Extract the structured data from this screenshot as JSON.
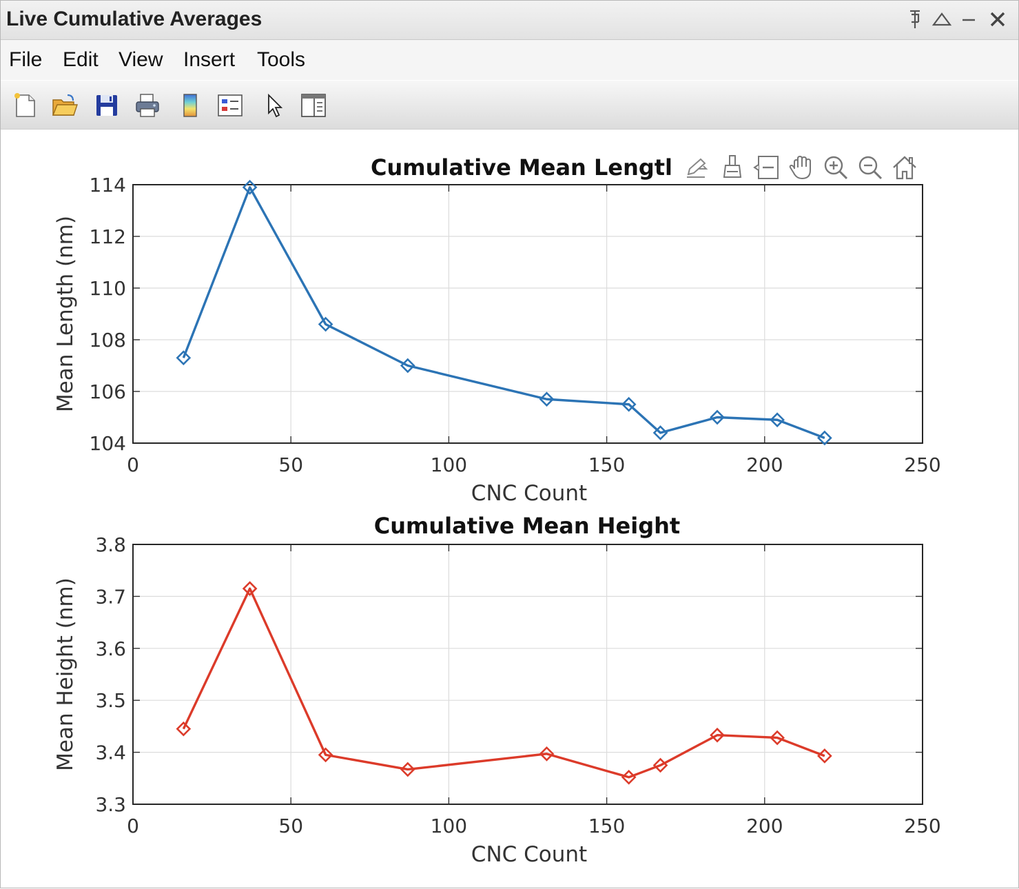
{
  "window": {
    "title": "Live Cumulative Averages",
    "controls": [
      "pin-icon",
      "undock-icon",
      "minimize-icon",
      "close-icon"
    ]
  },
  "menubar": {
    "items": [
      "File",
      "Edit",
      "View",
      "Insert",
      "Tools"
    ]
  },
  "toolbar": {
    "icons": [
      "new-figure-icon",
      "open-file-icon",
      "save-icon",
      "print-icon",
      "colorbar-icon",
      "legend-icon",
      "edit-plot-icon",
      "property-inspector-icon"
    ]
  },
  "axes_toolbar": {
    "icons": [
      "export-icon",
      "brush-icon",
      "datatip-icon",
      "pan-icon",
      "zoom-in-icon",
      "zoom-out-icon",
      "home-icon"
    ]
  },
  "chart_data": [
    {
      "type": "line",
      "title": "Cumulative Mean Lengtl",
      "xlabel": "CNC Count",
      "ylabel": "Mean Length (nm)",
      "xlim": [
        0,
        250
      ],
      "ylim": [
        104,
        114
      ],
      "xticks": [
        "0",
        "50",
        "100",
        "150",
        "200",
        "250"
      ],
      "yticks": [
        "104",
        "106",
        "108",
        "110",
        "112",
        "114"
      ],
      "grid": true,
      "marker": "diamond",
      "color": "#2c74b5",
      "x": [
        16,
        37,
        61,
        87,
        131,
        157,
        167,
        185,
        204,
        219
      ],
      "y": [
        107.3,
        113.9,
        108.6,
        107.0,
        105.7,
        105.5,
        104.4,
        105.0,
        104.9,
        104.2
      ]
    },
    {
      "type": "line",
      "title": "Cumulative Mean Height",
      "xlabel": "CNC Count",
      "ylabel": "Mean Height (nm)",
      "xlim": [
        0,
        250
      ],
      "ylim": [
        3.3,
        3.8
      ],
      "xticks": [
        "0",
        "50",
        "100",
        "150",
        "200",
        "250"
      ],
      "yticks": [
        "3.3",
        "3.4",
        "3.5",
        "3.6",
        "3.7",
        "3.8"
      ],
      "grid": true,
      "marker": "diamond",
      "color": "#dc3b2a",
      "x": [
        16,
        37,
        61,
        87,
        131,
        157,
        167,
        185,
        204,
        219
      ],
      "y": [
        3.445,
        3.715,
        3.395,
        3.367,
        3.397,
        3.352,
        3.375,
        3.433,
        3.428,
        3.393
      ]
    }
  ]
}
